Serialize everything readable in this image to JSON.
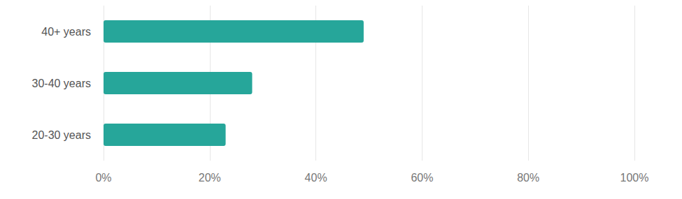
{
  "chart_data": {
    "type": "bar",
    "orientation": "horizontal",
    "categories": [
      "20-30 years",
      "30-40 years",
      "40+ years"
    ],
    "values": [
      23,
      28,
      49
    ],
    "color": "#26a69a",
    "xlim": [
      0,
      100
    ],
    "xticks": [
      {
        "value": 0,
        "label": "0%"
      },
      {
        "value": 20,
        "label": "20%"
      },
      {
        "value": 40,
        "label": "40%"
      },
      {
        "value": 60,
        "label": "60%"
      },
      {
        "value": 80,
        "label": "80%"
      },
      {
        "value": 100,
        "label": "100%"
      }
    ],
    "grid": true
  }
}
